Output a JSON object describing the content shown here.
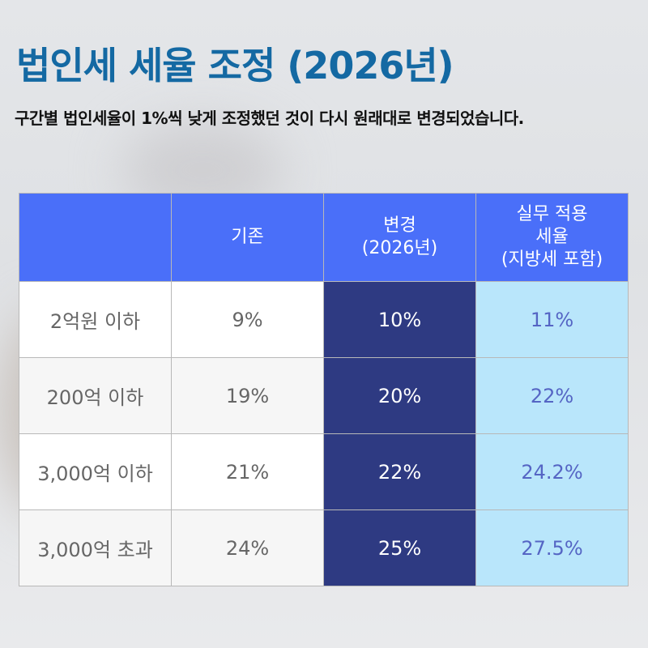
{
  "title": "법인세 세율 조정 (2026년)",
  "subtitle": "구간별 법인세율이 1%씩 낮게 조정했던 것이 다시 원래대로 변경되었습니다.",
  "colors": {
    "title": "#1469a3",
    "header": "#4a6ff9",
    "changed": "#2e3a82",
    "effective": "#b9e6fb"
  },
  "table": {
    "headers": [
      "",
      "기존",
      "변경\n(2026년)",
      "실무 적용\n세율\n(지방세 포함)"
    ],
    "rows": [
      {
        "bracket": "2억원 이하",
        "before": "9%",
        "after": "10%",
        "effective": "11%"
      },
      {
        "bracket": "200억 이하",
        "before": "19%",
        "after": "20%",
        "effective": "22%"
      },
      {
        "bracket": "3,000억 이하",
        "before": "21%",
        "after": "22%",
        "effective": "24.2%"
      },
      {
        "bracket": "3,000억 초과",
        "before": "24%",
        "after": "25%",
        "effective": "27.5%"
      }
    ]
  }
}
